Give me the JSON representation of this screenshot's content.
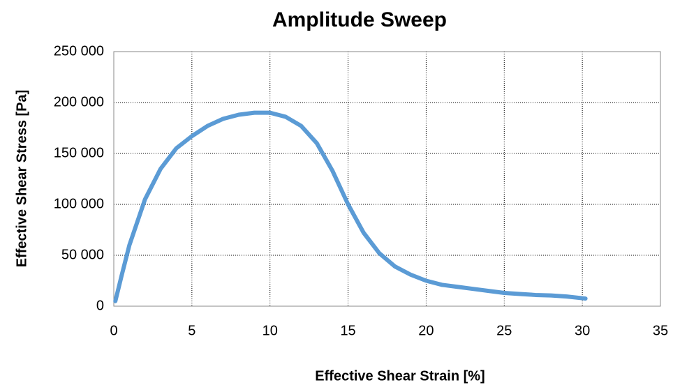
{
  "chart_data": {
    "type": "line",
    "title": "Amplitude Sweep",
    "x_label": "Effective Shear Strain [%]",
    "y_label": "Effective Shear Stress [Pa]",
    "x": [
      0.1,
      0.5,
      1,
      2,
      3,
      4,
      5,
      6,
      7,
      8,
      9,
      10,
      11,
      12,
      13,
      14,
      15,
      16,
      17,
      18,
      19,
      20,
      21,
      22,
      23,
      24,
      25,
      26,
      27,
      28,
      29,
      30.2
    ],
    "values": [
      5000,
      30000,
      60000,
      105000,
      135000,
      155000,
      167000,
      177000,
      184000,
      188000,
      190000,
      190000,
      186000,
      177000,
      160000,
      133000,
      100000,
      72000,
      52000,
      39000,
      31000,
      25000,
      21000,
      19000,
      17000,
      15000,
      13000,
      12000,
      11000,
      10500,
      9500,
      7500
    ],
    "color": "#5b9bd5",
    "xlim": [
      0,
      35
    ],
    "xticks": [
      0,
      5,
      10,
      15,
      20,
      25,
      30,
      35
    ],
    "ylim": [
      0,
      250000
    ],
    "yticks": [
      0,
      {
        "value": 50000,
        "label": "50 000"
      },
      {
        "value": 100000,
        "label": "100 000"
      },
      {
        "value": 150000,
        "label": "150 000"
      },
      {
        "value": 200000,
        "label": "200 000"
      },
      {
        "value": 250000,
        "label": "250 000"
      }
    ],
    "grid": true
  }
}
